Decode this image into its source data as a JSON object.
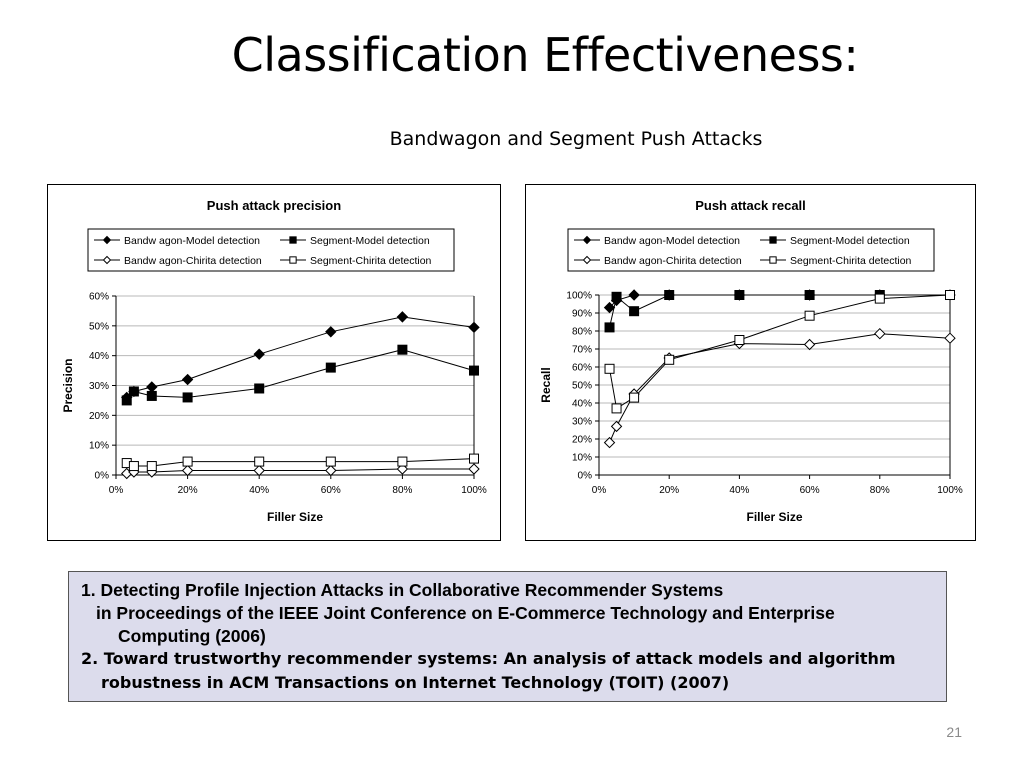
{
  "slide": {
    "title": "Classification Effectiveness:",
    "subtitle": "Bandwagon and Segment Push Attacks",
    "page_number": "21"
  },
  "references": {
    "ref1": {
      "line1": "1. Detecting Profile Injection Attacks in Collaborative Recommender Systems",
      "line2": "in Proceedings of the IEEE Joint Conference on E-Commerce Technology and Enterprise",
      "line3": "Computing (2006)"
    },
    "ref2": {
      "line1": "2. Toward trustworthy recommender systems: An analysis of attack models and algorithm",
      "line2": "robustness in ACM Transactions on Internet Technology (TOIT)  (2007)"
    }
  },
  "chart_data": [
    {
      "type": "line",
      "title": "Push attack precision",
      "xlabel": "Filler Size",
      "ylabel": "Precision",
      "x": [
        3,
        5,
        10,
        20,
        40,
        60,
        80,
        100
      ],
      "xticks": [
        "0%",
        "20%",
        "40%",
        "60%",
        "80%",
        "100%"
      ],
      "yticks": [
        "0%",
        "10%",
        "20%",
        "30%",
        "40%",
        "50%",
        "60%"
      ],
      "xlim": [
        0,
        100
      ],
      "ylim": [
        0,
        60
      ],
      "grid": true,
      "legend_position": "top",
      "series": [
        {
          "name": "Bandw agon-Model detection",
          "marker": "diamond-filled",
          "values": [
            26,
            28,
            29.5,
            32,
            40.5,
            48,
            53,
            49.5
          ]
        },
        {
          "name": "Segment-Model detection",
          "marker": "square-filled",
          "values": [
            25,
            28,
            26.5,
            26,
            29,
            36,
            42,
            35
          ]
        },
        {
          "name": "Bandw agon-Chirita detection",
          "marker": "diamond-open",
          "values": [
            0.5,
            1,
            1,
            1.5,
            1.5,
            1.5,
            2,
            2
          ]
        },
        {
          "name": "Segment-Chirita detection",
          "marker": "square-open",
          "values": [
            4,
            3,
            3,
            4.5,
            4.5,
            4.5,
            4.5,
            5.5
          ]
        }
      ]
    },
    {
      "type": "line",
      "title": "Push attack recall",
      "xlabel": "Filler Size",
      "ylabel": "Recall",
      "x": [
        3,
        5,
        10,
        20,
        40,
        60,
        80,
        100
      ],
      "xticks": [
        "0%",
        "20%",
        "40%",
        "60%",
        "80%",
        "100%"
      ],
      "yticks": [
        "0%",
        "10%",
        "20%",
        "30%",
        "40%",
        "50%",
        "60%",
        "70%",
        "80%",
        "90%",
        "100%"
      ],
      "xlim": [
        0,
        100
      ],
      "ylim": [
        0,
        100
      ],
      "grid": true,
      "legend_position": "top",
      "series": [
        {
          "name": "Bandw agon-Model detection",
          "marker": "diamond-filled",
          "values": [
            93,
            97,
            100,
            100,
            100,
            100,
            100,
            100
          ]
        },
        {
          "name": "Segment-Model detection",
          "marker": "square-filled",
          "values": [
            82,
            99,
            91,
            100,
            100,
            100,
            100,
            100
          ]
        },
        {
          "name": "Bandw agon-Chirita detection",
          "marker": "diamond-open",
          "values": [
            18,
            27,
            45,
            65,
            73,
            72.5,
            78.5,
            76
          ]
        },
        {
          "name": "Segment-Chirita detection",
          "marker": "square-open",
          "values": [
            59,
            37,
            43,
            64,
            75,
            88.5,
            98,
            100
          ]
        }
      ]
    }
  ]
}
